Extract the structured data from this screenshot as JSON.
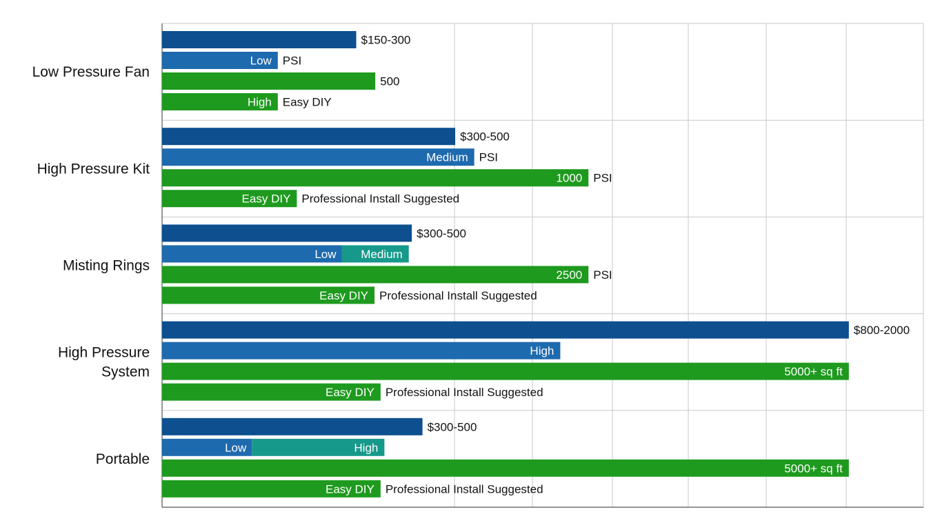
{
  "colors": {
    "blue": "#0d4f8f",
    "blue_light": "#1e6aae",
    "green": "#1e9a1e",
    "teal": "#16998a",
    "grid": "#c8c8c8"
  },
  "chart_data": {
    "type": "bar",
    "orientation": "horizontal",
    "title": "",
    "xlabel": "",
    "ylabel": "",
    "x_axis_labels_shown": false,
    "grid": true,
    "legend": "none",
    "xlim": [
      0,
      100
    ],
    "categories": [
      "Low Pressure Fan",
      "High Pressure Kit",
      "Misting Rings",
      "High Pressure System",
      "Portable"
    ],
    "groups": [
      {
        "category": "Low Pressure Fan",
        "bars": [
          {
            "color": "blue",
            "value": 25.5,
            "label_out": "$150-300"
          },
          {
            "color": "blue",
            "value": 15.2,
            "label_in": "Low",
            "label_out": "PSI"
          },
          {
            "color": "green",
            "value": 28.0,
            "label_out": "500"
          },
          {
            "color": "green",
            "value": 15.2,
            "label_in": "High",
            "label_out": "Easy DIY"
          }
        ]
      },
      {
        "category": "High Pressure Kit",
        "bars": [
          {
            "color": "blue",
            "value": 38.5,
            "label_out": "$300-500"
          },
          {
            "color": "blue",
            "value": 41.0,
            "label_in": "Medium",
            "label_out": "PSI"
          },
          {
            "color": "green",
            "value": 56.0,
            "label_in": "1000",
            "label_out": "PSI"
          },
          {
            "color": "green",
            "value": 17.7,
            "label_in": "Easy DIY",
            "label_out": "Professional Install Suggested"
          }
        ]
      },
      {
        "category": "Misting Rings",
        "bars": [
          {
            "color": "blue",
            "value": 32.8,
            "label_out": "$300-500"
          },
          {
            "color": "blue",
            "value": 32.4,
            "split": 23.6,
            "label_in": "Low",
            "label_in2": "Medium"
          },
          {
            "color": "green",
            "value": 56.0,
            "label_in": "2500",
            "label_out": "PSI"
          },
          {
            "color": "green",
            "value": 27.9,
            "label_in": "Easy DIY",
            "label_out": "Professional Install Suggested"
          }
        ]
      },
      {
        "category": "High Pressure System",
        "bars": [
          {
            "color": "blue",
            "value": 90.2,
            "label_out": "$800-2000"
          },
          {
            "color": "blue",
            "value": 52.3,
            "label_in": "High"
          },
          {
            "color": "green",
            "value": 90.2,
            "label_in": "5000+ sq ft"
          },
          {
            "color": "green",
            "value": 28.7,
            "label_in": "Easy DIY",
            "label_out": "Professional Install Suggested"
          }
        ]
      },
      {
        "category": "Portable",
        "bars": [
          {
            "color": "blue",
            "value": 34.2,
            "label_out": "$300-500"
          },
          {
            "color": "blue",
            "value": 29.2,
            "split": 11.8,
            "label_in": "Low",
            "label_in2": "High"
          },
          {
            "color": "green",
            "value": 90.2,
            "label_in": "5000+ sq ft"
          },
          {
            "color": "green",
            "value": 28.7,
            "label_in": "Easy DIY",
            "label_out": "Professional Install Suggested"
          }
        ]
      }
    ]
  }
}
